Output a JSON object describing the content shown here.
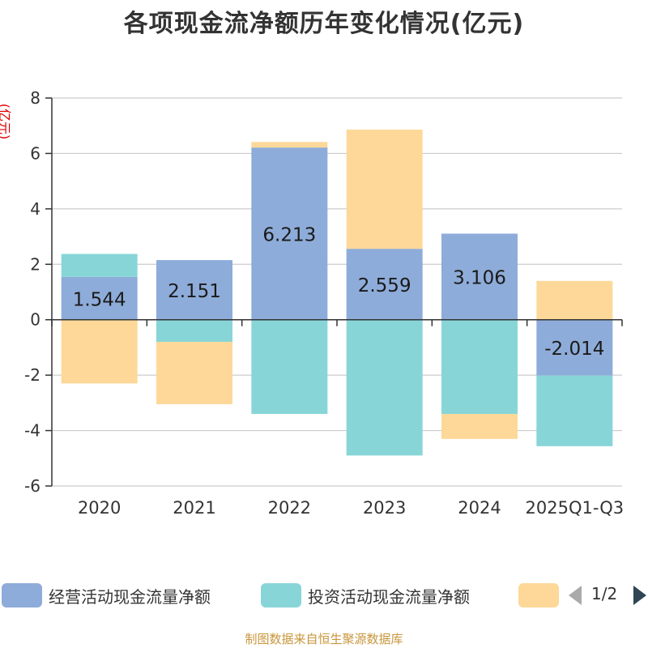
{
  "chart_data": {
    "type": "bar",
    "stacked": true,
    "title": "各项现金流净额历年变化情况(亿元)",
    "ylabel": "(亿元)",
    "ylim": [
      -6,
      8
    ],
    "yticks": [
      -6,
      -4,
      -2,
      0,
      2,
      4,
      6,
      8
    ],
    "grid": true,
    "categories": [
      "2020",
      "2021",
      "2022",
      "2023",
      "2024",
      "2025Q1-Q3"
    ],
    "series": [
      {
        "name": "经营活动现金流量净额",
        "color": "#8eacd9",
        "values": [
          1.544,
          2.151,
          6.213,
          2.559,
          3.106,
          -2.014
        ],
        "show_labels": true
      },
      {
        "name": "投资活动现金流量净额",
        "color": "#88d5d8",
        "values": [
          0.83,
          -0.8,
          -3.4,
          -4.9,
          -3.4,
          -2.55
        ],
        "show_labels": false
      },
      {
        "name": "",
        "color": "#fdd898",
        "values": [
          -2.3,
          -2.25,
          0.2,
          4.3,
          -0.9,
          1.4
        ],
        "show_labels": false
      }
    ],
    "data_labels": [
      "1.544",
      "2.151",
      "6.213",
      "2.559",
      "3.106",
      "-2.014"
    ],
    "legend": {
      "placement": "bottom",
      "page": "1/2"
    }
  },
  "source": "制图数据来自恒生聚源数据库"
}
